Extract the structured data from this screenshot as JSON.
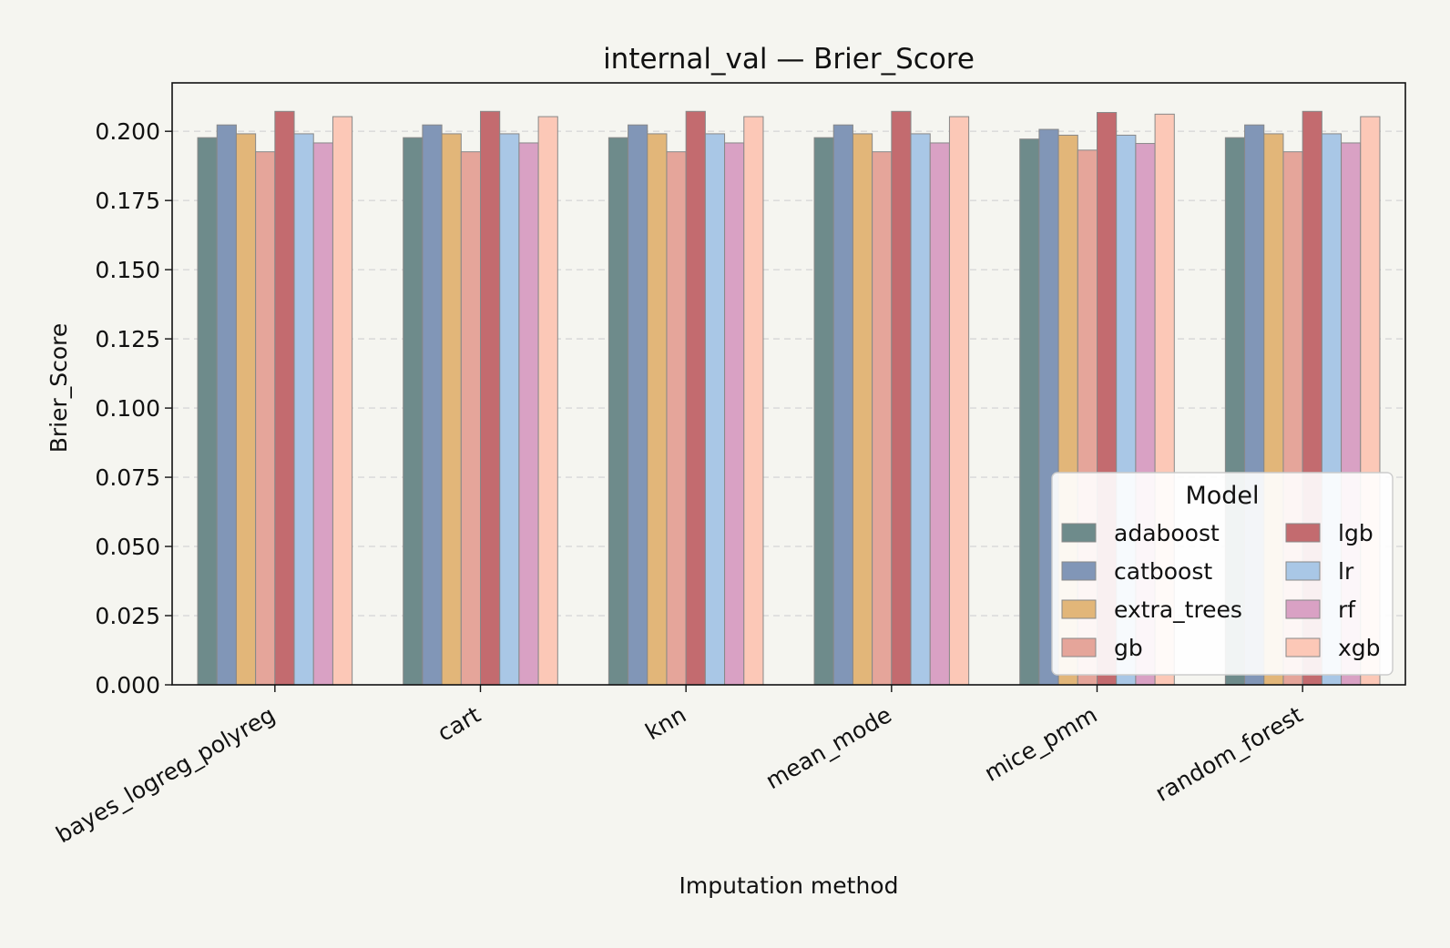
{
  "chart_data": {
    "type": "bar",
    "title": "internal_val — Brier_Score",
    "xlabel": "Imputation method",
    "ylabel": "Brier_Score",
    "ylim": [
      0,
      0.2175
    ],
    "yticks": [
      "0.000",
      "0.025",
      "0.050",
      "0.075",
      "0.100",
      "0.125",
      "0.150",
      "0.175",
      "0.200"
    ],
    "grid": "y-dashed",
    "legend_title": "Model",
    "legend_position": "lower-right",
    "categories": [
      "bayes_logreg_polyreg",
      "cart",
      "knn",
      "mean_mode",
      "mice_pmm",
      "random_forest"
    ],
    "series": [
      {
        "name": "adaboost",
        "color": "#6e8b8b",
        "values": [
          0.1977,
          0.1977,
          0.1977,
          0.1977,
          0.1972,
          0.1977
        ]
      },
      {
        "name": "catboost",
        "color": "#8196b7",
        "values": [
          0.2023,
          0.2023,
          0.2023,
          0.2023,
          0.2007,
          0.2023
        ]
      },
      {
        "name": "extra_trees",
        "color": "#e2b679",
        "values": [
          0.1991,
          0.1991,
          0.1991,
          0.1991,
          0.1986,
          0.1991
        ]
      },
      {
        "name": "gb",
        "color": "#e5a59a",
        "values": [
          0.1926,
          0.1926,
          0.1926,
          0.1926,
          0.1932,
          0.1926
        ]
      },
      {
        "name": "lgb",
        "color": "#c36b6f",
        "values": [
          0.2072,
          0.2072,
          0.2072,
          0.2072,
          0.2068,
          0.2072
        ]
      },
      {
        "name": "lr",
        "color": "#a9c7e6",
        "values": [
          0.1991,
          0.1991,
          0.1991,
          0.1991,
          0.1986,
          0.1991
        ]
      },
      {
        "name": "rf",
        "color": "#d9a1c4",
        "values": [
          0.1958,
          0.1958,
          0.1958,
          0.1958,
          0.1956,
          0.1958
        ]
      },
      {
        "name": "xgb",
        "color": "#fcc8b7",
        "values": [
          0.2053,
          0.2053,
          0.2053,
          0.2053,
          0.2062,
          0.2053
        ]
      }
    ]
  }
}
